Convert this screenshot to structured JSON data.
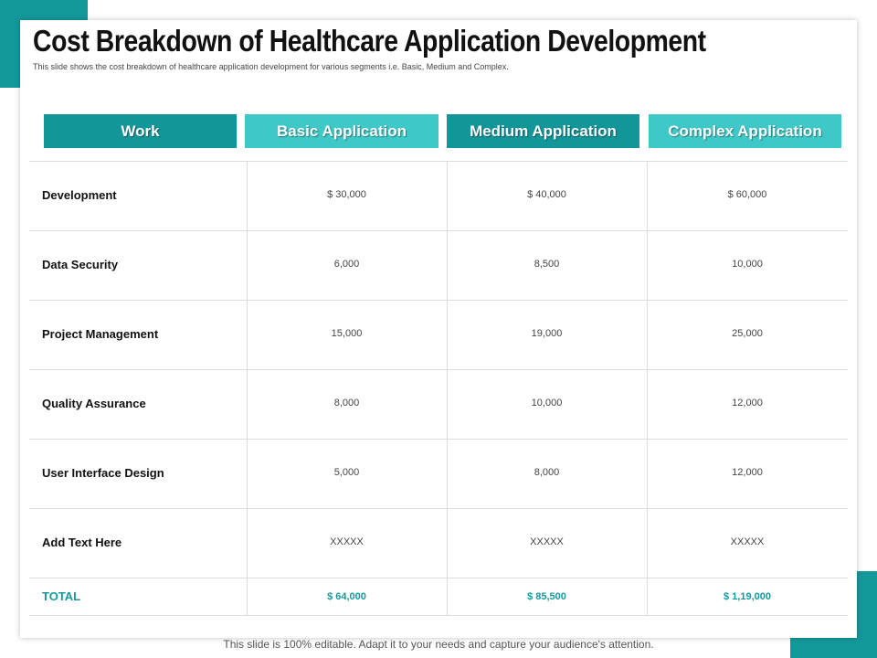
{
  "header": {
    "title": "Cost Breakdown of Healthcare Application Development",
    "subtitle": "This slide shows the cost breakdown of healthcare application development for various segments i.e. Basic, Medium and Complex."
  },
  "table": {
    "columns": [
      "Work",
      "Basic Application",
      "Medium Application",
      "Complex Application"
    ],
    "rows": [
      [
        "Development",
        "$ 30,000",
        "$ 40,000",
        "$ 60,000"
      ],
      [
        "Data Security",
        "6,000",
        "8,500",
        "10,000"
      ],
      [
        "Project Management",
        "15,000",
        "19,000",
        "25,000"
      ],
      [
        "Quality Assurance",
        "8,000",
        "10,000",
        "12,000"
      ],
      [
        "User Interface Design",
        "5,000",
        "8,000",
        "12,000"
      ],
      [
        "Add Text Here",
        "XXXXX",
        "XXXXX",
        "XXXXX"
      ]
    ],
    "total": [
      "TOTAL",
      "$ 64,000",
      "$ 85,500",
      "$ 1,19,000"
    ]
  },
  "footer": "This slide is 100% editable. Adapt it to your needs and capture your audience's attention."
}
